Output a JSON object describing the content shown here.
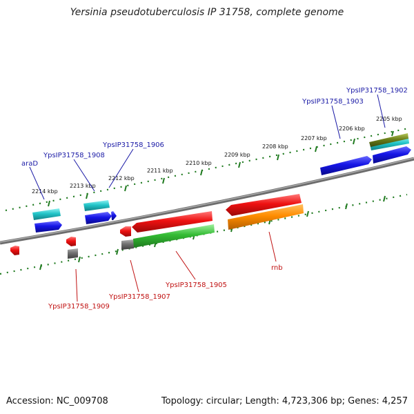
{
  "title": "Yersinia pseudotuberculosis IP 31758, complete genome",
  "footer": {
    "accession": "Accession: NC_009708",
    "summary": "Topology: circular; Length: 4,723,306 bp; Genes: 4,257"
  },
  "colors": {
    "backbone": "#7f7f7f",
    "ruler_ticks": "#1f7a1f",
    "label_top": "#1a1aa6",
    "label_bottom": "#c01010",
    "cyan": "#22c4c8",
    "blue": "#1515e6",
    "red": "#ee1111",
    "green": "#33bb33",
    "orange": "#ff8c00",
    "gray": "#707070",
    "olive": "#6b7f1a"
  },
  "ruler_labels": [
    "2205 kbp",
    "2206 kbp",
    "2207 kbp",
    "2208 kbp",
    "2209 kbp",
    "2210 kbp",
    "2211 kbp",
    "2212 kbp",
    "2213 kbp",
    "2214 kbp"
  ],
  "gene_labels_top": [
    "YpsIP31758_1902",
    "YpsIP31758_1903",
    "YpsIP31758_1906",
    "YpsIP31758_1908",
    "araD"
  ],
  "gene_labels_bottom": [
    "YpsIP31758_1905",
    "YpsIP31758_1907",
    "YpsIP31758_1909",
    "rnb"
  ]
}
